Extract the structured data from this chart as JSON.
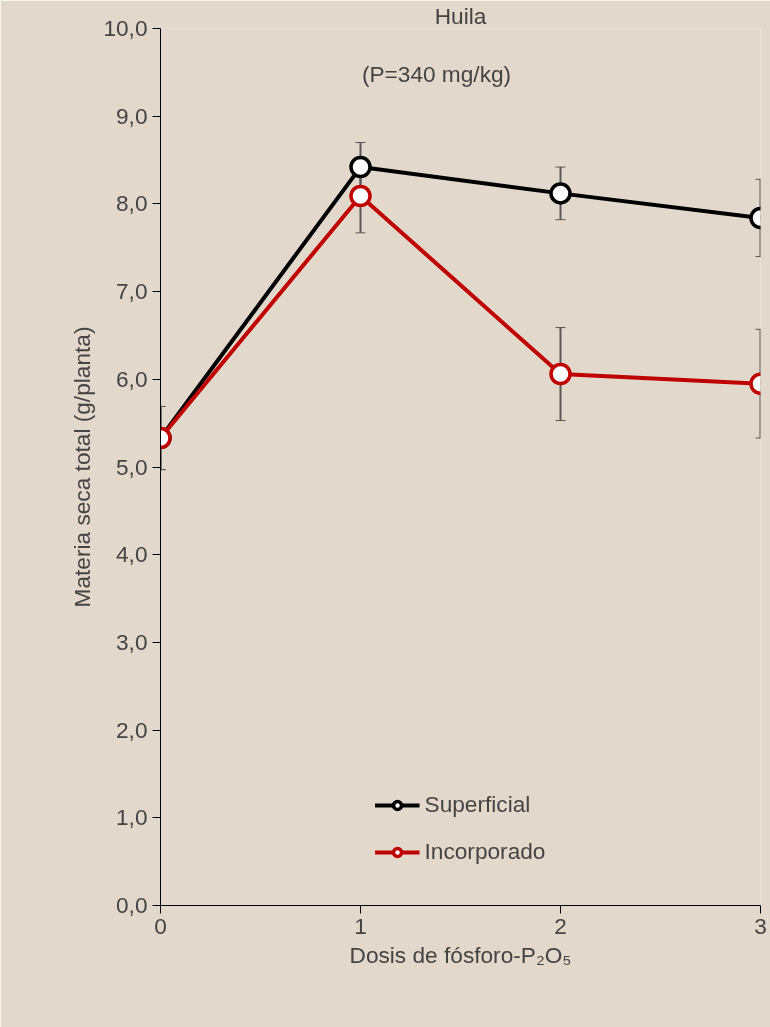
{
  "chart_data": {
    "type": "line",
    "title": "Huila",
    "subtitle": "(P=340 mg/kg)",
    "xlabel": "Dosis de fósforo-P₂O₅",
    "ylabel": "Materia seca total (g/planta)",
    "x": [
      0,
      1,
      2,
      3
    ],
    "series": [
      {
        "name": "Superficial",
        "color": "#000000",
        "values": [
          5.33,
          8.42,
          8.12,
          7.84
        ],
        "errors": [
          0.36,
          0.28,
          0.3,
          0.44
        ]
      },
      {
        "name": "Incorporado",
        "color": "#c00000",
        "values": [
          5.33,
          8.09,
          6.06,
          5.95
        ],
        "errors": [
          0.36,
          0.42,
          0.53,
          0.62
        ]
      }
    ],
    "xlim": [
      0,
      3
    ],
    "xticks": [
      0,
      1,
      2,
      3
    ],
    "ylim": [
      0,
      10
    ],
    "yticks": [
      {
        "value": 0,
        "label": "0,0"
      },
      {
        "value": 1,
        "label": "1,0"
      },
      {
        "value": 2,
        "label": "2,0"
      },
      {
        "value": 3,
        "label": "3,0"
      },
      {
        "value": 4,
        "label": "4,0"
      },
      {
        "value": 5,
        "label": "5,0"
      },
      {
        "value": 6,
        "label": "6,0"
      },
      {
        "value": 7,
        "label": "7,0"
      },
      {
        "value": 8,
        "label": "8,0"
      },
      {
        "value": 9,
        "label": "9,0"
      },
      {
        "value": 10,
        "label": "10,0"
      }
    ],
    "grid": false,
    "legend": "bottom",
    "marker": "circle",
    "line_style": "solid"
  }
}
